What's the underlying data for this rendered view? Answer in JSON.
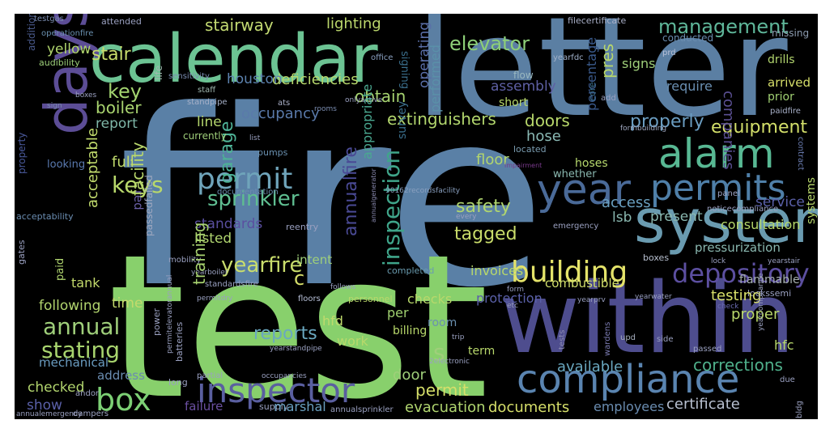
{
  "background": "#000000",
  "palette": [
    "#5a80a6",
    "#88d06c",
    "#5c4d96",
    "#6a9bb0",
    "#4fb08b",
    "#c8dc6b",
    "#a3d470",
    "#2a6e8c",
    "#7a7ab0",
    "#e8e36c"
  ],
  "words": [
    {
      "text": "fire",
      "color": "#5a80a6"
    },
    {
      "text": "test",
      "color": "#88d06c"
    },
    {
      "text": "letter",
      "color": "#5b7fa3"
    },
    {
      "text": "within",
      "color": "#4e4d8e"
    },
    {
      "text": "calendar",
      "color": "#6cc393"
    },
    {
      "text": "days",
      "color": "#5c4d96"
    },
    {
      "text": "system",
      "color": "#6a9bb0"
    },
    {
      "text": "compliance",
      "color": "#5a84b0"
    },
    {
      "text": "inspector",
      "color": "#5a5fa0"
    },
    {
      "text": "alarm",
      "color": "#58b893"
    },
    {
      "text": "permits",
      "color": "#4f7fa8"
    },
    {
      "text": "year",
      "color": "#4a6a98"
    },
    {
      "text": "building",
      "color": "#e4e36a"
    },
    {
      "text": "depository",
      "color": "#5c4fa0"
    },
    {
      "text": "box",
      "color": "#7ccf74"
    },
    {
      "text": "permit",
      "color": "#6fa4ba"
    },
    {
      "text": "inspection",
      "color": "#3fa58a"
    },
    {
      "text": "annualfire",
      "color": "#4a4a95"
    },
    {
      "text": "sprinkler",
      "color": "#5fbe91"
    },
    {
      "text": "annual",
      "color": "#9fcf7a"
    },
    {
      "text": "stating",
      "color": "#a8d46e"
    },
    {
      "text": "keys",
      "color": "#b8d86b"
    },
    {
      "text": "yearfire",
      "color": "#c9dd6c"
    },
    {
      "text": "reports",
      "color": "#6aa8c0"
    },
    {
      "text": "garage",
      "color": "#4eb296"
    },
    {
      "text": "elevator",
      "color": "#8dcf78"
    },
    {
      "text": "management",
      "color": "#5fb79a"
    },
    {
      "text": "stair",
      "color": "#c8dc6b"
    },
    {
      "text": "key",
      "color": "#a3d470"
    },
    {
      "text": "stairway",
      "color": "#c3da72"
    },
    {
      "text": "tagged",
      "color": "#c9dc6a"
    },
    {
      "text": "safety",
      "color": "#b0d56f"
    },
    {
      "text": "equipment",
      "color": "#d3df6a"
    },
    {
      "text": "properly",
      "color": "#6a9cc0"
    },
    {
      "text": "boiler",
      "color": "#a9d46f"
    },
    {
      "text": "report",
      "color": "#7fb7a8"
    },
    {
      "text": "doors",
      "color": "#b8d86b"
    },
    {
      "text": "extinguishers",
      "color": "#b2d66d"
    },
    {
      "text": "hose",
      "color": "#8ab9b4"
    },
    {
      "text": "occupancy",
      "color": "#5a7aaa"
    },
    {
      "text": "deficiencies",
      "color": "#b6d76c"
    },
    {
      "text": "houston",
      "color": "#5d83b0"
    },
    {
      "text": "obtain",
      "color": "#a6d370"
    },
    {
      "text": "performed",
      "color": "#5a90a8"
    },
    {
      "text": "operating",
      "color": "#5a6fa8"
    },
    {
      "text": "signing",
      "color": "#3a6e8c"
    },
    {
      "text": "assembly",
      "color": "#5e60a4"
    },
    {
      "text": "percentage",
      "color": "#3a5a8c"
    },
    {
      "text": "pres",
      "color": "#b9d86b"
    },
    {
      "text": "companies",
      "color": "#5a4f92"
    },
    {
      "text": "signs",
      "color": "#9fcf7a"
    },
    {
      "text": "require",
      "color": "#6a8fb2"
    },
    {
      "text": "arrived",
      "color": "#d6df6a"
    },
    {
      "text": "prior",
      "color": "#a0d072"
    },
    {
      "text": "drills",
      "color": "#b2d56e"
    },
    {
      "text": "missing",
      "color": "#8c9cb0"
    },
    {
      "text": "conducted",
      "color": "#6a8db0"
    },
    {
      "text": "filecertificate",
      "color": "#aab0c8"
    },
    {
      "text": "lighting",
      "color": "#bcd86c"
    },
    {
      "text": "yellow",
      "color": "#b1d66e"
    },
    {
      "text": "audibility",
      "color": "#9dcf79"
    },
    {
      "text": "operationfire",
      "color": "#6a90b0"
    },
    {
      "text": "testgas",
      "color": "#7a8cb0"
    },
    {
      "text": "attended",
      "color": "#9aa0c0"
    },
    {
      "text": "addition",
      "color": "#4a5a8c"
    },
    {
      "text": "office",
      "color": "#8aa0c0"
    },
    {
      "text": "yearfdc",
      "color": "#a0b0c8"
    },
    {
      "text": "flow",
      "color": "#9ab8c0"
    },
    {
      "text": "core",
      "color": "#3a6e8c"
    },
    {
      "text": "prd",
      "color": "#b8c0d8"
    },
    {
      "text": "add",
      "color": "#9aa0c0"
    },
    {
      "text": "paidfire",
      "color": "#a8b0c8"
    },
    {
      "text": "sensitivity",
      "color": "#7a8cb0"
    },
    {
      "text": "staff",
      "color": "#a0b8b0"
    },
    {
      "text": "life",
      "color": "#a0b8b0"
    },
    {
      "text": "standpipe",
      "color": "#a6b0c8"
    },
    {
      "text": "ats",
      "color": "#aab0c8"
    },
    {
      "text": "onlyactive",
      "color": "#9aa0c0"
    },
    {
      "text": "rooms",
      "color": "#7a8cb0"
    },
    {
      "text": "list",
      "color": "#9aa0c0"
    },
    {
      "text": "short",
      "color": "#b8d86b"
    },
    {
      "text": "line",
      "color": "#b4d66d"
    },
    {
      "text": "full",
      "color": "#c0da6c"
    },
    {
      "text": "looking",
      "color": "#5a7ab0"
    },
    {
      "text": "property",
      "color": "#4a5a9c"
    },
    {
      "text": "sign",
      "color": "#7a8cb0"
    },
    {
      "text": "boxes",
      "color": "#9aa0c0"
    },
    {
      "text": "formbuilding",
      "color": "#a0a8c0"
    },
    {
      "text": "currently",
      "color": "#9fcf7a"
    },
    {
      "text": "pumps",
      "color": "#6a90b0"
    },
    {
      "text": "documentation",
      "color": "#6a8cb0"
    },
    {
      "text": "floor",
      "color": "#b2d56e"
    },
    {
      "text": "located",
      "color": "#7a9cb0"
    },
    {
      "text": "impairment",
      "color": "#7a3a8c"
    },
    {
      "text": "hoses",
      "color": "#b6d86d"
    },
    {
      "text": "whether",
      "color": "#8ab8b0"
    },
    {
      "text": "panel",
      "color": "#9aa0c0"
    },
    {
      "text": "noticecompliance",
      "color": "#9aa0c0"
    },
    {
      "text": "contract",
      "color": "#6a7cb0"
    },
    {
      "text": "systems",
      "color": "#b8d86b"
    },
    {
      "text": "access",
      "color": "#6aa0c0"
    },
    {
      "text": "present",
      "color": "#8ab8b0"
    },
    {
      "text": "lsb",
      "color": "#8ab8b0"
    },
    {
      "text": "service",
      "color": "#5a60a8"
    },
    {
      "text": "consultation",
      "color": "#b6d86b"
    },
    {
      "text": "appropriate",
      "color": "#4aa890"
    },
    {
      "text": "survey",
      "color": "#3a6e8c"
    },
    {
      "text": "90162recordsfacility",
      "color": "#8aa0c0"
    },
    {
      "text": "acceptability",
      "color": "#6a8cb0"
    },
    {
      "text": "red",
      "color": "#6a60a8"
    },
    {
      "text": "facility",
      "color": "#b9d86b"
    },
    {
      "text": "acceptable",
      "color": "#c0da6c"
    },
    {
      "text": "standards",
      "color": "#5a4fa0"
    },
    {
      "text": "listed",
      "color": "#b0d56f"
    },
    {
      "text": "reentry",
      "color": "#9aa0c0"
    },
    {
      "text": "annualgenerator",
      "color": "#8a8ab0"
    },
    {
      "text": "every",
      "color": "#9aa0c0"
    },
    {
      "text": "emergency",
      "color": "#9aa0c0"
    },
    {
      "text": "passedfailed",
      "color": "#a0a8c0"
    },
    {
      "text": "mobility",
      "color": "#9aa0c0"
    },
    {
      "text": "yearboiler",
      "color": "#9aa0c0"
    },
    {
      "text": "gates",
      "color": "#9aa0c0"
    },
    {
      "text": "paid",
      "color": "#b0d56f"
    },
    {
      "text": "standardsfire",
      "color": "#9aa0c0"
    },
    {
      "text": "intent",
      "color": "#9fcf7a"
    },
    {
      "text": "invoices",
      "color": "#b8d86b"
    },
    {
      "text": "completed",
      "color": "#6a9cb0"
    },
    {
      "text": "follows",
      "color": "#9aa0c0"
    },
    {
      "text": "boxes",
      "color": "#b8c0d0"
    },
    {
      "text": "pressurization",
      "color": "#8ab8b0"
    },
    {
      "text": "yearstair",
      "color": "#9aa0c0"
    },
    {
      "text": "flammable",
      "color": "#a6b0b0"
    },
    {
      "text": "lock",
      "color": "#9aa0c0"
    },
    {
      "text": "lockssemi",
      "color": "#9aa0c0"
    },
    {
      "text": "tank",
      "color": "#c3da6c"
    },
    {
      "text": "c",
      "color": "#d6df6a"
    },
    {
      "text": "combustible",
      "color": "#d0de6b"
    },
    {
      "text": "testing",
      "color": "#d8e06a"
    },
    {
      "text": "proper",
      "color": "#b9d86b"
    },
    {
      "text": "following",
      "color": "#b2d56e"
    },
    {
      "text": "time",
      "color": "#c4da6c"
    },
    {
      "text": "mechanical",
      "color": "#6a9cc0"
    },
    {
      "text": "training",
      "color": "#a8d36f"
    },
    {
      "text": "hfd",
      "color": "#c0da6c"
    },
    {
      "text": "checks",
      "color": "#b8d86b"
    },
    {
      "text": "per",
      "color": "#a0d070"
    },
    {
      "text": "protection",
      "color": "#5a60a8"
    },
    {
      "text": "room",
      "color": "#6a90b0"
    },
    {
      "text": "form",
      "color": "#9aa0c0"
    },
    {
      "text": "etc",
      "color": "#9aa0c0"
    },
    {
      "text": "trip",
      "color": "#9aa0c0"
    },
    {
      "text": "yearprv",
      "color": "#9aa0c0"
    },
    {
      "text": "yearwater",
      "color": "#9aa0c0"
    },
    {
      "text": "yearcompliance",
      "color": "#9aa0c0"
    },
    {
      "text": "check",
      "color": "#6a6ab0"
    },
    {
      "text": "personnel",
      "color": "#b9d86b"
    },
    {
      "text": "floors",
      "color": "#b8c0d8"
    },
    {
      "text": "power",
      "color": "#9aa0c0"
    },
    {
      "text": "permitelevatorannual",
      "color": "#9aa0c0"
    },
    {
      "text": "permitdry",
      "color": "#9aa0c0"
    },
    {
      "text": "batteries",
      "color": "#9aa0c0"
    },
    {
      "text": "work",
      "color": "#b8d86b"
    },
    {
      "text": "billing",
      "color": "#b8d86b"
    },
    {
      "text": "s",
      "color": "#9fcf7a"
    },
    {
      "text": "yearstandpipe",
      "color": "#9aa0c0"
    },
    {
      "text": "tests",
      "color": "#8a8ab0"
    },
    {
      "text": "wardens",
      "color": "#7a7ab0"
    },
    {
      "text": "upd",
      "color": "#a8b0c0"
    },
    {
      "text": "side",
      "color": "#9aa0c0"
    },
    {
      "text": "passed",
      "color": "#9aa0c0"
    },
    {
      "text": "hfc",
      "color": "#b8d86b"
    },
    {
      "text": "term",
      "color": "#b8d86b"
    },
    {
      "text": "2electronic",
      "color": "#9aa0c0"
    },
    {
      "text": "corrections",
      "color": "#4fb08b"
    },
    {
      "text": "available",
      "color": "#6aa8c0"
    },
    {
      "text": "door",
      "color": "#9fcf7a"
    },
    {
      "text": "address",
      "color": "#6a8cb0"
    },
    {
      "text": "long",
      "color": "#9aa0c0"
    },
    {
      "text": "checked",
      "color": "#b2d56e"
    },
    {
      "text": "show",
      "color": "#5a60a8"
    },
    {
      "text": "andor",
      "color": "#9aa0c0"
    },
    {
      "text": "dampers",
      "color": "#9aa0c0"
    },
    {
      "text": "partial",
      "color": "#9aa0c0"
    },
    {
      "text": "occupancies",
      "color": "#9aa0c0"
    },
    {
      "text": "annualemergency",
      "color": "#9aa0c0"
    },
    {
      "text": "failure",
      "color": "#6a4fa0"
    },
    {
      "text": "supply",
      "color": "#9aa0c0"
    },
    {
      "text": "marshal",
      "color": "#6aa0c0"
    },
    {
      "text": "annualsprinkler",
      "color": "#9aa0c0"
    },
    {
      "text": "evacuation",
      "color": "#b0d56f"
    },
    {
      "text": "documents",
      "color": "#d6df6a"
    },
    {
      "text": "employees",
      "color": "#6a8cb0"
    },
    {
      "text": "certificate",
      "color": "#b8c0d0"
    },
    {
      "text": "due",
      "color": "#9aa0c0"
    },
    {
      "text": "bldg",
      "color": "#9aa0c0"
    },
    {
      "text": "permit",
      "color": "#d6df6a"
    }
  ]
}
